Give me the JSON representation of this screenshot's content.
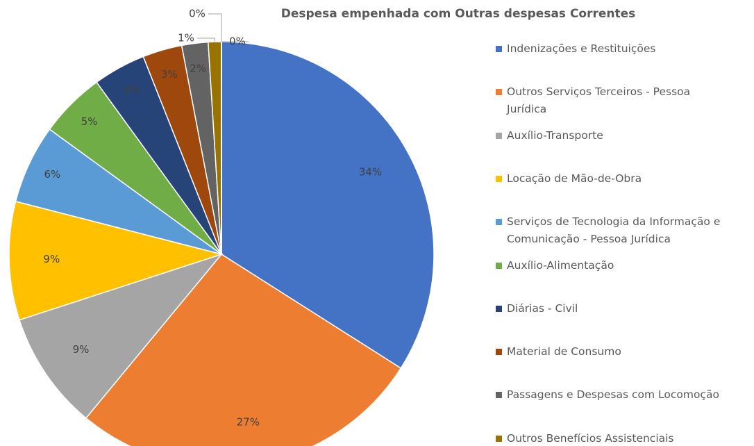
{
  "chart_data": {
    "type": "pie",
    "title": "Despesa empenhada com Outras despesas Correntes",
    "categories": [
      "Indenizações e Restituições",
      "Outros Serviços Terceiros - Pessoa Jurídica",
      "Auxílio-Transporte",
      "Locação de Mão-de-Obra",
      "Serviços de Tecnologia da Informação e Comunicação - Pessoa Jurídica",
      "Auxílio-Alimentação",
      "Diárias - Civil",
      "Material de Consumo",
      "Passagens e Despesas com Locomoção",
      "Outros Benefícios Assistenciais",
      null,
      null
    ],
    "values": [
      34,
      27,
      9,
      9,
      6,
      5,
      4,
      3,
      2,
      1,
      0,
      0
    ],
    "value_labels": [
      "34%",
      "27%",
      "9%",
      "9%",
      "6%",
      "5%",
      "4%",
      "3%",
      "2%",
      "1%",
      "0%",
      "0%"
    ],
    "colors": [
      "#4472c4",
      "#ed7d31",
      "#a5a5a5",
      "#ffc000",
      "#5b9bd5",
      "#70ad47",
      "#264478",
      "#9e480e",
      "#636363",
      "#997300",
      "#255e91",
      "#698ed0"
    ],
    "legend": "right"
  }
}
